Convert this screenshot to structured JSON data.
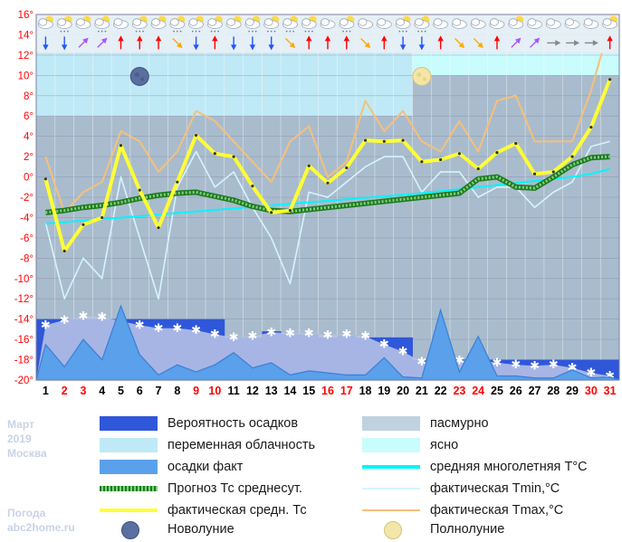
{
  "chart_data": {
    "type": "line",
    "x": [
      1,
      2,
      3,
      4,
      5,
      6,
      7,
      8,
      9,
      10,
      11,
      12,
      13,
      14,
      15,
      16,
      17,
      18,
      19,
      20,
      21,
      22,
      23,
      24,
      25,
      26,
      27,
      28,
      29,
      30,
      31
    ],
    "x_labels": [
      "1",
      "2",
      "3",
      "4",
      "5",
      "6",
      "7",
      "8",
      "9",
      "10",
      "11",
      "12",
      "13",
      "14",
      "15",
      "16",
      "17",
      "18",
      "19",
      "20",
      "21",
      "22",
      "23",
      "24",
      "25",
      "26",
      "27",
      "28",
      "29",
      "30",
      "31"
    ],
    "weekend_days": [
      2,
      3,
      9,
      10,
      16,
      17,
      23,
      24,
      30,
      31
    ],
    "weekend_color": "#ff0000",
    "weekday_color": "#000000",
    "ylim": [
      -20,
      16
    ],
    "yticks": [
      "-20°",
      "-18°",
      "-16°",
      "-14°",
      "-12°",
      "-10°",
      "-8°",
      "-6°",
      "-4°",
      "-2°",
      "0°",
      "2°",
      "4°",
      "6°",
      "8°",
      "10°",
      "12°",
      "14°",
      "16°"
    ],
    "ytick_values": [
      -20,
      -18,
      -16,
      -14,
      -12,
      -10,
      -8,
      -6,
      -4,
      -2,
      0,
      2,
      4,
      6,
      8,
      10,
      12,
      14,
      16
    ],
    "series": [
      {
        "name": "фактическая Tmax,°C",
        "color": "#f5c07a",
        "values": [
          2,
          -3.5,
          -1.5,
          -0.5,
          4.5,
          3.5,
          0.5,
          2.5,
          6.5,
          5.5,
          3.5,
          1.5,
          -0.5,
          3.5,
          5,
          0,
          1.5,
          7.5,
          4.5,
          6.5,
          3.5,
          2.5,
          5.5,
          2.5,
          7.5,
          8,
          3.5,
          3.5,
          3.5,
          8.5,
          15
        ]
      },
      {
        "name": "фактическая Tmin,°C",
        "color": "#d4f4ff",
        "values": [
          -4.5,
          -12,
          -8,
          -10,
          0,
          -6,
          -12,
          -1,
          2.5,
          -1,
          0.5,
          -3,
          -6,
          -10.5,
          -1.5,
          -2,
          -0.5,
          1,
          2,
          2,
          -1.5,
          0.5,
          0.5,
          -2,
          -1,
          -1,
          -3,
          -1.5,
          -0.5,
          3,
          3.5
        ]
      },
      {
        "name": "Прогноз Тс среднесут.",
        "color": "#3aa63a",
        "values": [
          -3.5,
          -3.3,
          -3,
          -2.8,
          -2.5,
          -2.1,
          -1.8,
          -1.6,
          -1.5,
          -1.9,
          -2.3,
          -2.9,
          -3.3,
          -3.4,
          -3.2,
          -3,
          -2.8,
          -2.6,
          -2.4,
          -2.2,
          -2,
          -1.8,
          -1.6,
          -0.2,
          0,
          -1,
          -1.1,
          0,
          1.2,
          1.9,
          2
        ]
      },
      {
        "name": "средняя многолетняя T°C",
        "color": "#00f5ff",
        "values": [
          -4.6,
          -4.45,
          -4.3,
          -4.15,
          -4.0,
          -3.85,
          -3.7,
          -3.55,
          -3.4,
          -3.25,
          -3.1,
          -2.95,
          -2.8,
          -2.65,
          -2.5,
          -2.35,
          -2.2,
          -2.05,
          -1.9,
          -1.75,
          -1.6,
          -1.4,
          -1.2,
          -1.0,
          -0.8,
          -0.6,
          -0.4,
          -0.2,
          0,
          0.3,
          0.8
        ]
      },
      {
        "name": "фактическая средн. Тс",
        "color": "#ffff33",
        "values": [
          -0.2,
          -7.3,
          -4.7,
          -4,
          3.1,
          -1.3,
          -5,
          -0.5,
          4.1,
          2.3,
          2,
          -0.9,
          -3.5,
          -3.3,
          1.1,
          -0.6,
          0.9,
          3.6,
          3.5,
          3.6,
          1.5,
          1.7,
          2.3,
          0.8,
          2.4,
          3.3,
          0.3,
          0.5,
          2,
          4.9,
          9.6
        ]
      }
    ],
    "precip_forecast_top": [
      -14,
      -14,
      -14,
      -14,
      -14,
      -14,
      -14,
      -14,
      -14,
      -14,
      -15.8,
      -15.8,
      -15.2,
      -15.5,
      -15.5,
      -15.8,
      -15.6,
      -15.8,
      -15.8,
      -15.8,
      -18,
      -18,
      -18,
      -18,
      -18,
      -18,
      -18,
      -18,
      -18,
      -18,
      -18
    ],
    "precip_snow_marks": [
      -14.6,
      -14.1,
      -13.7,
      -13.8,
      -14.2,
      -14.6,
      -14.9,
      -14.9,
      -15.1,
      -15.5,
      -15.8,
      -15.7,
      -15.3,
      -15.4,
      -15.4,
      -15.6,
      -15.5,
      -15.7,
      -16.5,
      -17.2,
      -18.2,
      -18.1,
      -18.1,
      -18,
      -18.3,
      -18.5,
      -18.6,
      -18.5,
      -18.8,
      -19.3,
      -19.6
    ],
    "precip_actual": [
      -16.5,
      -18.7,
      -16,
      -18,
      -12.7,
      -17.5,
      -19.5,
      -18.5,
      -19.2,
      -18.5,
      -17.3,
      -18.8,
      -18.3,
      -19.5,
      -19.1,
      -19.3,
      -19.5,
      -19.5,
      -17.8,
      -19.7,
      -19.8,
      -13.1,
      -19.2,
      -15.7,
      -19.6,
      -19.6,
      -19.8,
      -19.8,
      -19,
      -19.8,
      -19.7
    ],
    "cloud_bands": [
      {
        "from": 1,
        "to": 11,
        "type": "overcast",
        "top": 16,
        "bottom": 12.2
      },
      {
        "from": 1,
        "to": 11,
        "type": "partly",
        "top": 12.2,
        "bottom": 6
      },
      {
        "from": 11,
        "to": 21,
        "type": "overcast",
        "top": 16,
        "bottom": 12.2
      },
      {
        "from": 11,
        "to": 21,
        "type": "partly",
        "top": 12.2,
        "bottom": 6
      },
      {
        "from": 21,
        "to": 31,
        "type": "overcast",
        "top": 16,
        "bottom": 12.2
      },
      {
        "from": 21,
        "to": 31,
        "type": "clear",
        "top": 12.2,
        "bottom": 10
      }
    ],
    "new_moon_day": 6,
    "full_moon_day": 21,
    "weather_icons": [
      "cloud-sun",
      "cloud-snow",
      "cloud-sun",
      "cloud-snow",
      "cloud",
      "cloud-snow",
      "cloud-sun",
      "cloud-snow",
      "cloud-snow",
      "cloud-snow",
      "cloud-sun",
      "cloud-snow",
      "cloud-snow",
      "cloud-snow",
      "cloud-snow",
      "cloud",
      "cloud-snow",
      "cloud",
      "cloud",
      "cloud-snow",
      "cloud-snow",
      "cloud",
      "cloud",
      "cloud",
      "cloud",
      "cloud-sun",
      "cloud",
      "cloud",
      "cloud",
      "cloud",
      "cloud-sun"
    ],
    "wind_arrows": [
      {
        "color": "#2255ff",
        "dir": "down"
      },
      {
        "color": "#2255ff",
        "dir": "down"
      },
      {
        "color": "#aa55ff",
        "dir": "up-right"
      },
      {
        "color": "#aa55ff",
        "dir": "up-right"
      },
      {
        "color": "#ff0000",
        "dir": "up"
      },
      {
        "color": "#ff0000",
        "dir": "up"
      },
      {
        "color": "#ff0000",
        "dir": "up"
      },
      {
        "color": "#ffaa00",
        "dir": "down-right"
      },
      {
        "color": "#2255ff",
        "dir": "down"
      },
      {
        "color": "#ff0000",
        "dir": "up"
      },
      {
        "color": "#2255ff",
        "dir": "down"
      },
      {
        "color": "#2255ff",
        "dir": "down"
      },
      {
        "color": "#2255ff",
        "dir": "down"
      },
      {
        "color": "#ffaa00",
        "dir": "down-right"
      },
      {
        "color": "#ff0000",
        "dir": "up"
      },
      {
        "color": "#ff0000",
        "dir": "up"
      },
      {
        "color": "#ff0000",
        "dir": "up"
      },
      {
        "color": "#ffaa00",
        "dir": "down-right"
      },
      {
        "color": "#ff0000",
        "dir": "up"
      },
      {
        "color": "#2255ff",
        "dir": "down"
      },
      {
        "color": "#2255ff",
        "dir": "down"
      },
      {
        "color": "#ff0000",
        "dir": "up"
      },
      {
        "color": "#ffaa00",
        "dir": "down-right"
      },
      {
        "color": "#ffaa00",
        "dir": "down-right"
      },
      {
        "color": "#ff0000",
        "dir": "up"
      },
      {
        "color": "#aa55ff",
        "dir": "up-right"
      },
      {
        "color": "#aa55ff",
        "dir": "up-right"
      },
      {
        "color": "#888888",
        "dir": "right"
      },
      {
        "color": "#888888",
        "dir": "right"
      },
      {
        "color": "#888888",
        "dir": "right"
      },
      {
        "color": "#ff0000",
        "dir": "up"
      }
    ],
    "colors": {
      "overcast": "#bfd2df",
      "partly": "#bfe9f6",
      "clear": "#c9fcfc",
      "plot_bg_low": "#a9bccd",
      "precip_prob": "#2f57d9",
      "precip_actual": "#5aa0ea",
      "grid": "#7f7f9f"
    }
  },
  "legend": {
    "col1": [
      {
        "label": "Вероятность осадков",
        "kind": "fill",
        "color": "#2f57d9"
      },
      {
        "label": "переменная облачность",
        "kind": "fill",
        "color": "#bfe9f6"
      },
      {
        "label": "осадки факт",
        "kind": "fill",
        "color": "#5aa0ea"
      },
      {
        "label": "Прогноз Тс среднесут.",
        "kind": "dotline",
        "color": "#3aa63a"
      },
      {
        "label": "фактическая средн. Тс",
        "kind": "line",
        "color": "#ffff33"
      },
      {
        "label": "Новолуние",
        "kind": "newmoon",
        "color": "#5a6fa0"
      }
    ],
    "col2": [
      {
        "label": "пасмурно",
        "kind": "fill",
        "color": "#bfd2df"
      },
      {
        "label": "ясно",
        "kind": "fill",
        "color": "#c9fcfc"
      },
      {
        "label": "средняя многолетняя T°C",
        "kind": "line",
        "color": "#00f5ff"
      },
      {
        "label": "фактическая Tmin,°C",
        "kind": "thinline",
        "color": "#d4f4ff"
      },
      {
        "label": "фактическая Tmax,°C",
        "kind": "thinline",
        "color": "#f5c07a"
      },
      {
        "label": "Полнолуние",
        "kind": "fullmoon",
        "color": "#f3e6a8"
      }
    ]
  },
  "side": {
    "month": "Март",
    "year": "2019",
    "city": "Москва",
    "site_title": "Погода",
    "site_url": "abc2home.ru"
  }
}
